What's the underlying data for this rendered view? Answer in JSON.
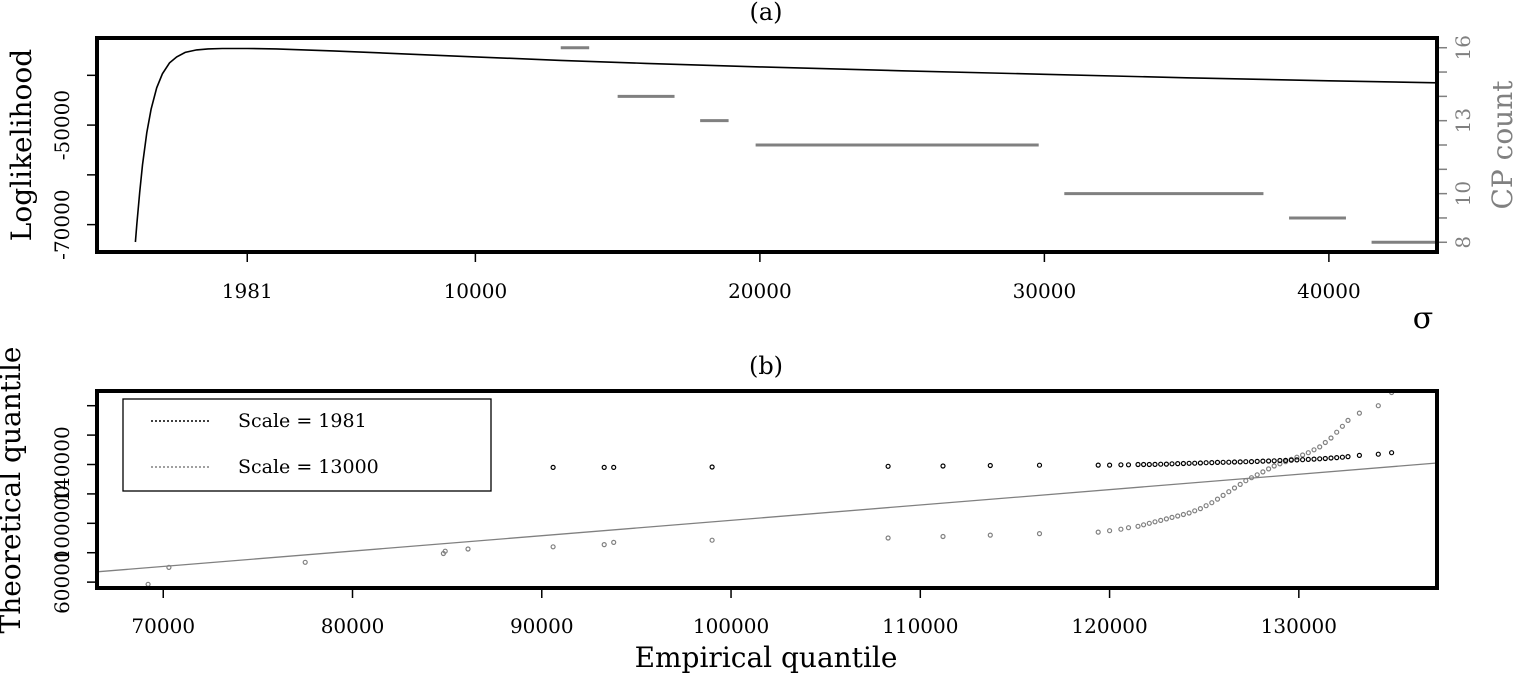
{
  "chart_data": [
    {
      "panel_label": "(a)",
      "type": "line",
      "xlabel": "σ",
      "ylabel": "Loglikelihood",
      "y2label": "CP count",
      "xlim": [
        -3300,
        43800
      ],
      "ylim": [
        -75500,
        -32500
      ],
      "y2lim": [
        7.6,
        16.4
      ],
      "xticks": [
        1981,
        10000,
        20000,
        30000,
        40000
      ],
      "yticks": [
        -70000,
        -50000
      ],
      "yticks_minor": [
        -60000,
        -40000
      ],
      "y2ticks": [
        8,
        10,
        13,
        16
      ],
      "y2ticks_minor": [
        9,
        11,
        12,
        14,
        15
      ],
      "series": [
        {
          "role": "loglikelihood curve",
          "color": "#000000",
          "x": [
            -1950,
            -1900,
            -1800,
            -1700,
            -1550,
            -1400,
            -1200,
            -1000,
            -750,
            -500,
            -200,
            200,
            600,
            1100,
            1600,
            1981,
            3000,
            5000,
            7500,
            10000,
            13000,
            16000,
            20000,
            25000,
            30000,
            35000,
            40000,
            43800
          ],
          "y": [
            -73500,
            -70000,
            -63500,
            -58000,
            -51500,
            -46800,
            -42500,
            -39700,
            -37500,
            -36300,
            -35400,
            -34900,
            -34700,
            -34600,
            -34600,
            -34600,
            -34700,
            -35100,
            -35700,
            -36300,
            -37000,
            -37600,
            -38300,
            -39100,
            -39800,
            -40500,
            -41100,
            -41500
          ]
        },
        {
          "role": "CP count steps",
          "color": "#808080",
          "segments": [
            {
              "x0": 13000,
              "x1": 14000,
              "count": 16
            },
            {
              "x0": 15000,
              "x1": 17000,
              "count": 14
            },
            {
              "x0": 17900,
              "x1": 18900,
              "count": 13
            },
            {
              "x0": 19850,
              "x1": 29800,
              "count": 12
            },
            {
              "x0": 30700,
              "x1": 37700,
              "count": 10
            },
            {
              "x0": 38600,
              "x1": 40600,
              "count": 9
            },
            {
              "x0": 41500,
              "x1": 43800,
              "count": 8
            }
          ]
        }
      ]
    },
    {
      "panel_label": "(b)",
      "type": "scatter",
      "xlabel": "Empirical quantile",
      "ylabel": "Theoretical quantile",
      "xlim": [
        66500,
        137300
      ],
      "ylim": [
        56000,
        190000
      ],
      "xticks": [
        70000,
        80000,
        90000,
        100000,
        110000,
        120000,
        130000
      ],
      "yticks": [
        60000,
        100000,
        140000
      ],
      "yticks_minor": [
        80000,
        120000,
        160000,
        180000
      ],
      "legend": {
        "position": "top-left",
        "entries": [
          {
            "label": "Scale = 1981",
            "color": "#000000"
          },
          {
            "label": "Scale = 13000",
            "color": "#808080"
          }
        ]
      },
      "reference_line": {
        "color": "#808080",
        "x": [
          66500,
          137300
        ],
        "y": [
          67000,
          141000
        ]
      },
      "series": [
        {
          "name": "Scale = 1981",
          "color": "#000000",
          "points": [
            [
              69200,
              135000
            ],
            [
              70300,
              136000
            ],
            [
              77500,
              137000
            ],
            [
              84800,
              137500
            ],
            [
              84900,
              137500
            ],
            [
              86100,
              137800
            ],
            [
              90600,
              138000
            ],
            [
              93300,
              138000
            ],
            [
              93800,
              138000
            ],
            [
              99000,
              138300
            ],
            [
              108300,
              138800
            ],
            [
              111200,
              139000
            ],
            [
              113700,
              139300
            ],
            [
              116300,
              139500
            ],
            [
              119400,
              139600
            ],
            [
              120000,
              139600
            ],
            [
              120600,
              139800
            ],
            [
              121000,
              139800
            ],
            [
              121500,
              140000
            ],
            [
              121800,
              140000
            ],
            [
              122100,
              140000
            ],
            [
              122400,
              140100
            ],
            [
              122700,
              140200
            ],
            [
              123000,
              140300
            ],
            [
              123300,
              140500
            ],
            [
              123600,
              140600
            ],
            [
              123900,
              140700
            ],
            [
              124200,
              140800
            ],
            [
              124500,
              140900
            ],
            [
              124800,
              141000
            ],
            [
              125100,
              141200
            ],
            [
              125400,
              141300
            ],
            [
              125700,
              141400
            ],
            [
              126000,
              141500
            ],
            [
              126300,
              141600
            ],
            [
              126600,
              141700
            ],
            [
              126900,
              141800
            ],
            [
              127200,
              141900
            ],
            [
              127500,
              142000
            ],
            [
              127800,
              142100
            ],
            [
              128100,
              142300
            ],
            [
              128400,
              142400
            ],
            [
              128700,
              142500
            ],
            [
              129000,
              142700
            ],
            [
              129300,
              142800
            ],
            [
              129600,
              143000
            ],
            [
              129900,
              143100
            ],
            [
              130200,
              143300
            ],
            [
              130500,
              143500
            ],
            [
              130800,
              143700
            ],
            [
              131100,
              143900
            ],
            [
              131400,
              144100
            ],
            [
              131700,
              144400
            ],
            [
              132000,
              144700
            ],
            [
              132300,
              145000
            ],
            [
              132600,
              145400
            ],
            [
              133200,
              146200
            ],
            [
              134200,
              147000
            ],
            [
              134900,
              148000
            ]
          ]
        },
        {
          "name": "Scale = 13000",
          "color": "#808080",
          "points": [
            [
              69200,
              58500
            ],
            [
              70300,
              70000
            ],
            [
              77500,
              73500
            ],
            [
              84800,
              79500
            ],
            [
              84900,
              81000
            ],
            [
              86100,
              82500
            ],
            [
              90600,
              84000
            ],
            [
              93300,
              85500
            ],
            [
              93800,
              87000
            ],
            [
              99000,
              88500
            ],
            [
              108300,
              90000
            ],
            [
              111200,
              91000
            ],
            [
              113700,
              92000
            ],
            [
              116300,
              93000
            ],
            [
              119400,
              94000
            ],
            [
              120000,
              95000
            ],
            [
              120600,
              96000
            ],
            [
              121000,
              97000
            ],
            [
              121500,
              98000
            ],
            [
              121800,
              99000
            ],
            [
              122100,
              100000
            ],
            [
              122400,
              101000
            ],
            [
              122700,
              102000
            ],
            [
              123000,
              103000
            ],
            [
              123300,
              104000
            ],
            [
              123600,
              105000
            ],
            [
              123900,
              106000
            ],
            [
              124200,
              107000
            ],
            [
              124500,
              108500
            ],
            [
              124800,
              110000
            ],
            [
              125100,
              112000
            ],
            [
              125400,
              114000
            ],
            [
              125700,
              116500
            ],
            [
              126000,
              119000
            ],
            [
              126300,
              121500
            ],
            [
              126600,
              124000
            ],
            [
              126900,
              126500
            ],
            [
              127200,
              129000
            ],
            [
              127500,
              131000
            ],
            [
              127800,
              133000
            ],
            [
              128100,
              135000
            ],
            [
              128400,
              137000
            ],
            [
              128700,
              139000
            ],
            [
              129000,
              140500
            ],
            [
              129300,
              142000
            ],
            [
              129600,
              143500
            ],
            [
              129900,
              145000
            ],
            [
              130200,
              146500
            ],
            [
              130500,
              148000
            ],
            [
              130800,
              150000
            ],
            [
              131100,
              152000
            ],
            [
              131400,
              155000
            ],
            [
              131700,
              158000
            ],
            [
              132000,
              162000
            ],
            [
              132300,
              166000
            ],
            [
              132600,
              170000
            ],
            [
              133200,
              175000
            ],
            [
              134200,
              180000
            ],
            [
              134900,
              189000
            ]
          ]
        }
      ]
    }
  ]
}
